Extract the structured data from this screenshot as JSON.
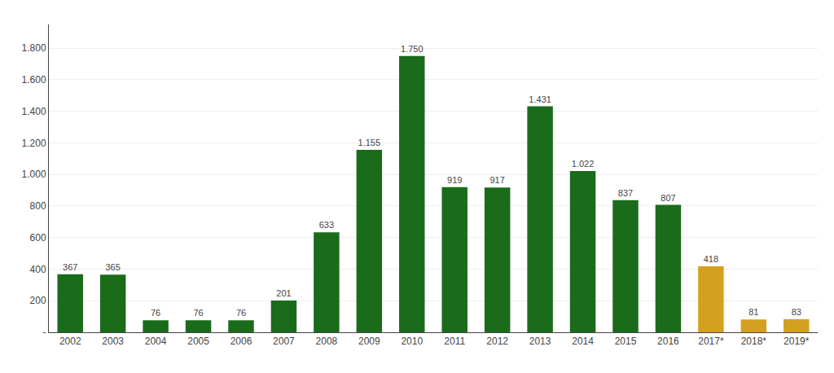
{
  "chart_data": {
    "type": "bar",
    "categories": [
      "2002",
      "2003",
      "2004",
      "2005",
      "2006",
      "2007",
      "2008",
      "2009",
      "2010",
      "2011",
      "2012",
      "2013",
      "2014",
      "2015",
      "2016",
      "2017*",
      "2018*",
      "2019*"
    ],
    "values": [
      367,
      365,
      76,
      76,
      76,
      201,
      633,
      1155,
      1750,
      919,
      917,
      1431,
      1022,
      837,
      807,
      418,
      81,
      83
    ],
    "value_labels": [
      "367",
      "365",
      "76",
      "76",
      "76",
      "201",
      "633",
      "1.155",
      "1.750",
      "919",
      "917",
      "1.431",
      "1.022",
      "837",
      "807",
      "418",
      "81",
      "83"
    ],
    "colors": [
      "#1a6b1a",
      "#1a6b1a",
      "#1a6b1a",
      "#1a6b1a",
      "#1a6b1a",
      "#1a6b1a",
      "#1a6b1a",
      "#1a6b1a",
      "#1a6b1a",
      "#1a6b1a",
      "#1a6b1a",
      "#1a6b1a",
      "#1a6b1a",
      "#1a6b1a",
      "#1a6b1a",
      "#d4a020",
      "#d4a020",
      "#d4a020"
    ],
    "ylim": [
      0,
      1950
    ],
    "yticks": [
      {
        "value": 0,
        "label": "-"
      },
      200,
      400,
      600,
      800,
      {
        "value": 1000,
        "label": "1.000"
      },
      {
        "value": 1200,
        "label": "1.200"
      },
      {
        "value": 1400,
        "label": "1.400"
      },
      {
        "value": 1600,
        "label": "1.600"
      },
      {
        "value": 1800,
        "label": "1.800"
      }
    ],
    "grid": true,
    "data_labels": true
  }
}
